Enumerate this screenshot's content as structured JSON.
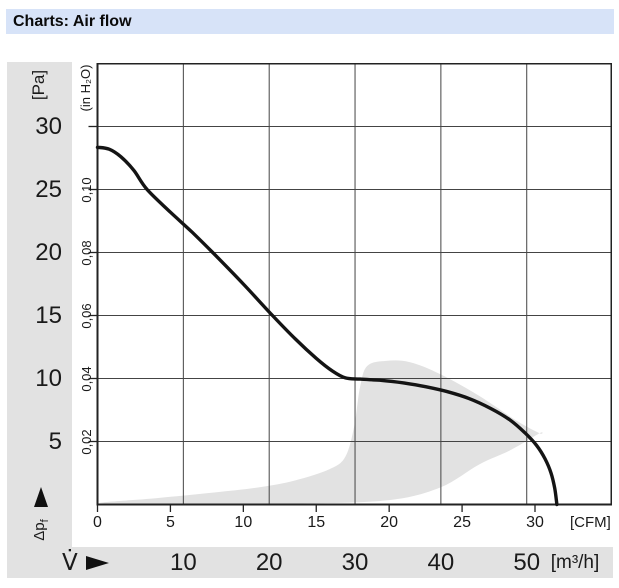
{
  "title_bar": {
    "title": "Charts: Air flow"
  },
  "left_axis": {
    "unit": "[Pa]",
    "tick_labels": [
      "30",
      "25",
      "20",
      "15",
      "10",
      "5"
    ],
    "tick_values": [
      30,
      25,
      20,
      15,
      10,
      5
    ],
    "axis_symbol": "Δp",
    "axis_symbol_sub": "f",
    "axis_arrow_icon": "up-arrow"
  },
  "inner_left_axis": {
    "unit": "(in H₂O)",
    "tick_labels": [
      "0,10",
      "0,08",
      "0,06",
      "0,04",
      "0,02"
    ],
    "tick_values_pa": [
      25,
      20,
      15,
      10,
      5
    ]
  },
  "bottom_axis_cfm": {
    "unit": "[CFM]",
    "tick_labels": [
      "0",
      "5",
      "10",
      "15",
      "20",
      "25",
      "30"
    ],
    "tick_values": [
      0,
      5,
      10,
      15,
      20,
      25,
      30
    ]
  },
  "bottom_axis_m3h": {
    "unit": "[m³/h]",
    "axis_symbol": "V̇",
    "axis_arrow_icon": "right-arrow",
    "tick_labels": [
      "10",
      "20",
      "30",
      "40",
      "50"
    ],
    "tick_values": [
      10,
      20,
      30,
      40,
      50
    ]
  },
  "colors": {
    "title_bar_bg": "#d7e3f8",
    "band_bg": "#e2e2e2",
    "grid": "#444444",
    "border": "#222222",
    "curve": "#141414",
    "region": "#e2e2e2",
    "text": "#1a1a1a"
  },
  "chart_data": {
    "type": "line",
    "title": "Charts: Air flow",
    "xlabel_primary": "[CFM]",
    "xlabel_secondary": "[m³/h]",
    "ylabel_primary": "[Pa]",
    "ylabel_secondary": "(in H₂O)",
    "x_range_m3h": [
      0,
      60
    ],
    "x_range_cfm": [
      0,
      35.2
    ],
    "y_range_pa": [
      0,
      35
    ],
    "grid": true,
    "legend": "none",
    "series": [
      {
        "name": "fan-characteristic-curve (static pressure vs air flow)",
        "color": "#141414",
        "points_cfm_pa": [
          [
            0,
            28.35
          ],
          [
            0.8,
            28.2
          ],
          [
            1.6,
            27.6
          ],
          [
            2.5,
            26.5
          ],
          [
            3.4,
            25.0
          ],
          [
            5.0,
            23.2
          ],
          [
            6.5,
            21.6
          ],
          [
            7.9,
            20.0
          ],
          [
            10.0,
            17.5
          ],
          [
            12.0,
            15.0
          ],
          [
            13.6,
            13.1
          ],
          [
            15.0,
            11.6
          ],
          [
            16.1,
            10.6
          ],
          [
            17.0,
            10.05
          ],
          [
            18.0,
            9.95
          ],
          [
            19.5,
            9.85
          ],
          [
            21.0,
            9.65
          ],
          [
            22.5,
            9.35
          ],
          [
            24.0,
            8.95
          ],
          [
            25.5,
            8.4
          ],
          [
            27.0,
            7.6
          ],
          [
            28.3,
            6.7
          ],
          [
            29.3,
            5.7
          ],
          [
            30.1,
            4.7
          ],
          [
            30.7,
            3.6
          ],
          [
            31.1,
            2.5
          ],
          [
            31.35,
            1.3
          ],
          [
            31.5,
            0.0
          ]
        ]
      }
    ],
    "regions": [
      {
        "name": "recommended-operating-range (shaded)",
        "color": "#e2e2e2",
        "polygon_cfm_pa": [
          [
            0.2,
            0.1
          ],
          [
            4,
            0.5
          ],
          [
            8,
            0.95
          ],
          [
            11,
            1.35
          ],
          [
            13.5,
            1.9
          ],
          [
            15.9,
            2.8
          ],
          [
            17.0,
            3.8
          ],
          [
            17.6,
            6.2
          ],
          [
            18.0,
            9.3
          ],
          [
            18.5,
            11.0
          ],
          [
            19.8,
            11.4
          ],
          [
            21.4,
            11.3
          ],
          [
            23.5,
            10.35
          ],
          [
            26.2,
            8.6
          ],
          [
            28.8,
            6.6
          ],
          [
            30.3,
            5.65
          ],
          [
            30.3,
            5.65
          ],
          [
            28.3,
            4.3
          ],
          [
            26.2,
            3.2
          ],
          [
            23.5,
            1.35
          ],
          [
            20.0,
            0.35
          ],
          [
            14,
            0.08
          ],
          [
            7,
            0.03
          ]
        ]
      }
    ]
  }
}
